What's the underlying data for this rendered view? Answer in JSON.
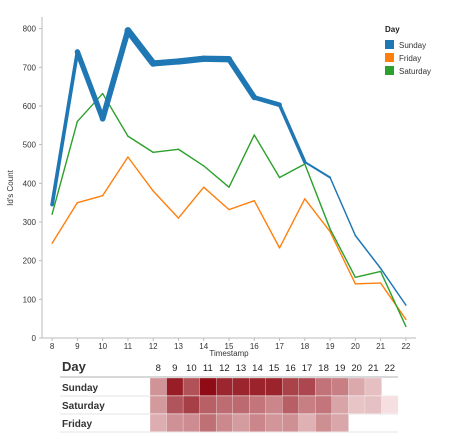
{
  "chart_data": [
    {
      "type": "line",
      "xlabel": "Timestamp",
      "ylabel": "Id's Count",
      "x": [
        8,
        9,
        10,
        11,
        12,
        13,
        14,
        15,
        16,
        17,
        18,
        19,
        20,
        21,
        22
      ],
      "xlim": [
        7.6,
        22.4
      ],
      "ylim": [
        0,
        830
      ],
      "yticks": [
        0,
        100,
        200,
        300,
        400,
        500,
        600,
        700,
        800
      ],
      "grid": false,
      "legend": {
        "title": "Day",
        "position": "top-right"
      },
      "series": [
        {
          "name": "Sunday",
          "color": "#1f77b4",
          "values": [
            345,
            740,
            567,
            795,
            710,
            715,
            722,
            721,
            622,
            603,
            455,
            415,
            265,
            180,
            85
          ]
        },
        {
          "name": "Friday",
          "color": "#ff7f0e",
          "values": [
            245,
            350,
            368,
            468,
            380,
            310,
            390,
            332,
            355,
            233,
            360,
            275,
            140,
            142,
            48
          ]
        },
        {
          "name": "Saturday",
          "color": "#2ca02c",
          "values": [
            320,
            560,
            632,
            522,
            480,
            488,
            445,
            390,
            525,
            415,
            450,
            282,
            157,
            172,
            30
          ]
        }
      ],
      "line_width_by_value": true
    },
    {
      "type": "heatmap",
      "row_header": "Day",
      "x": [
        8,
        9,
        10,
        11,
        12,
        13,
        14,
        15,
        16,
        17,
        18,
        19,
        20,
        21,
        22
      ],
      "rows": [
        "Sunday",
        "Saturday",
        "Friday"
      ],
      "color_low": "#f5dfe0",
      "color_high": "#8e0a14",
      "values": [
        [
          345,
          740,
          567,
          795,
          710,
          715,
          722,
          721,
          622,
          603,
          455,
          415,
          265,
          180,
          null
        ],
        [
          320,
          560,
          632,
          522,
          480,
          488,
          445,
          390,
          525,
          415,
          450,
          282,
          157,
          172,
          30
        ],
        [
          245,
          350,
          368,
          468,
          380,
          310,
          390,
          332,
          355,
          233,
          360,
          275,
          null,
          null,
          null
        ]
      ]
    }
  ]
}
